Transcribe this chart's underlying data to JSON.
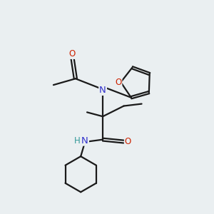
{
  "bg_color": "#eaeff1",
  "bond_color": "#1a1a1a",
  "N_color": "#3333cc",
  "O_color": "#cc2200",
  "H_color": "#339999",
  "line_width": 1.6,
  "fig_width": 3.0,
  "fig_height": 3.0,
  "dpi": 100,
  "xlim": [
    0,
    10
  ],
  "ylim": [
    0,
    10
  ]
}
